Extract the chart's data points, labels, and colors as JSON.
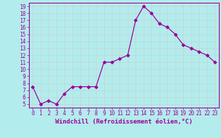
{
  "x": [
    0,
    1,
    2,
    3,
    4,
    5,
    6,
    7,
    8,
    9,
    10,
    11,
    12,
    13,
    14,
    15,
    16,
    17,
    18,
    19,
    20,
    21,
    22,
    23
  ],
  "y": [
    7.5,
    5.0,
    5.5,
    5.0,
    6.5,
    7.5,
    7.5,
    7.5,
    7.5,
    11.0,
    11.0,
    11.5,
    12.0,
    17.0,
    19.0,
    18.0,
    16.5,
    16.0,
    15.0,
    13.5,
    13.0,
    12.5,
    12.0,
    11.0
  ],
  "line_color": "#990099",
  "marker": "D",
  "markersize": 2.5,
  "linewidth": 0.9,
  "bg_color": "#b3ecec",
  "grid_color": "#cccccc",
  "xlabel": "Windchill (Refroidissement éolien,°C)",
  "xlabel_fontsize": 6.5,
  "xlim": [
    -0.5,
    23.5
  ],
  "ylim": [
    4.5,
    19.5
  ],
  "yticks": [
    5,
    6,
    7,
    8,
    9,
    10,
    11,
    12,
    13,
    14,
    15,
    16,
    17,
    18,
    19
  ],
  "xticks": [
    0,
    1,
    2,
    3,
    4,
    5,
    6,
    7,
    8,
    9,
    10,
    11,
    12,
    13,
    14,
    15,
    16,
    17,
    18,
    19,
    20,
    21,
    22,
    23
  ],
  "tick_fontsize": 5.5,
  "tick_color": "#990099",
  "axis_label_color": "#990099",
  "spine_color": "#990099",
  "font_family": "monospace"
}
